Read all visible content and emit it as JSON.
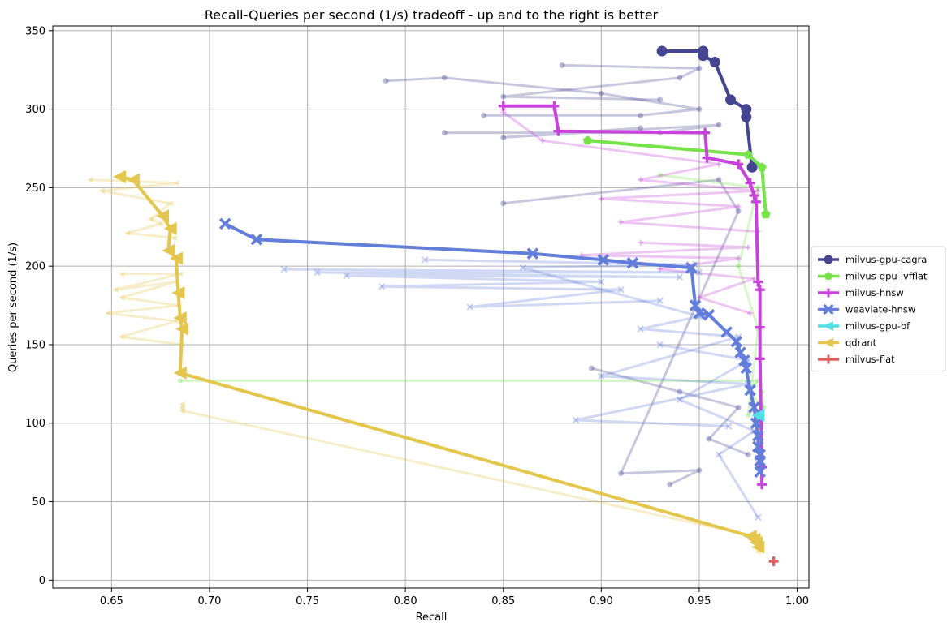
{
  "chart_data": {
    "type": "line",
    "title": "Recall-Queries per second (1/s) tradeoff - up and to the right is better",
    "xlabel": "Recall",
    "ylabel": "Queries per second (1/s)",
    "xlim": [
      0.62,
      1.006
    ],
    "ylim": [
      -5,
      353
    ],
    "xticks": [
      "0.65",
      "0.70",
      "0.75",
      "0.80",
      "0.85",
      "0.90",
      "0.95",
      "1.00"
    ],
    "xtick_values": [
      0.65,
      0.7,
      0.75,
      0.8,
      0.85,
      0.9,
      0.95,
      1.0
    ],
    "yticks": [
      "0",
      "50",
      "100",
      "150",
      "200",
      "250",
      "300",
      "350"
    ],
    "ytick_values": [
      0,
      50,
      100,
      150,
      200,
      250,
      300,
      350
    ],
    "grid": true,
    "legend_position": "right",
    "series": [
      {
        "name": "milvus-gpu-cagra",
        "color": "#454592",
        "marker": "circle",
        "x": [
          0.931,
          0.952,
          0.952,
          0.958,
          0.966,
          0.974,
          0.974,
          0.977
        ],
        "y": [
          337,
          337,
          334,
          330,
          306,
          300,
          295,
          263
        ],
        "faint": [
          {
            "x": [
              0.88,
              0.95,
              0.94,
              0.85,
              0.93
            ],
            "y": [
              328,
              326,
              320,
              308,
              306
            ]
          },
          {
            "x": [
              0.79,
              0.82,
              0.9,
              0.95,
              0.92,
              0.84
            ],
            "y": [
              318,
              320,
              310,
              300,
              296,
              296
            ]
          },
          {
            "x": [
              0.82,
              0.93,
              0.96,
              0.85,
              0.92
            ],
            "y": [
              285,
              285,
              290,
              282,
              288
            ]
          },
          {
            "x": [
              0.85,
              0.96,
              0.97,
              0.91,
              0.95,
              0.935
            ],
            "y": [
              240,
              255,
              235,
              68,
              70,
              61
            ]
          },
          {
            "x": [
              0.895,
              0.94,
              0.97,
              0.955,
              0.975
            ],
            "y": [
              135,
              120,
              110,
              90,
              80
            ]
          }
        ]
      },
      {
        "name": "milvus-gpu-ivfflat",
        "color": "#77e34a",
        "marker": "pentagon",
        "x": [
          0.893,
          0.975,
          0.982,
          0.984
        ],
        "y": [
          280,
          271,
          263,
          233
        ],
        "faint": [
          {
            "x": [
              0.685,
              0.98,
              0.978,
              0.975,
              0.983,
              0.982
            ],
            "y": [
              127,
              127,
              124,
              120,
              110,
              120
            ]
          },
          {
            "x": [
              0.93,
              0.98,
              0.97,
              0.98,
              0.975
            ],
            "y": [
              258,
              250,
              200,
              160,
              105
            ]
          }
        ]
      },
      {
        "name": "milvus-hnsw",
        "color": "#c743dc",
        "marker": "plus",
        "x": [
          0.85,
          0.876,
          0.878,
          0.953,
          0.954,
          0.97,
          0.976,
          0.978,
          0.979,
          0.98,
          0.981,
          0.981,
          0.981,
          0.982,
          0.982
        ],
        "y": [
          302,
          302,
          286,
          285,
          269,
          265,
          253,
          245,
          241,
          190,
          185,
          161,
          141,
          72,
          61
        ],
        "faint": [
          {
            "x": [
              0.85,
              0.87,
              0.96,
              0.92,
              0.98,
              0.9,
              0.97,
              0.91,
              0.98
            ],
            "y": [
              298,
              280,
              265,
              255,
              248,
              243,
              238,
              228,
              222
            ]
          },
          {
            "x": [
              0.92,
              0.975,
              0.89,
              0.97,
              0.93,
              0.978,
              0.95,
              0.976
            ],
            "y": [
              215,
              212,
              207,
              205,
              198,
              192,
              180,
              170
            ]
          }
        ]
      },
      {
        "name": "weaviate-hnsw",
        "color": "#637ddb",
        "marker": "x",
        "x": [
          0.708,
          0.724,
          0.865,
          0.901,
          0.916,
          0.946,
          0.948,
          0.95,
          0.955,
          0.964,
          0.969,
          0.971,
          0.973,
          0.974,
          0.976,
          0.978,
          0.979,
          0.98,
          0.98,
          0.981,
          0.981,
          0.981
        ],
        "y": [
          227,
          217,
          208,
          204,
          202,
          199,
          175,
          170,
          169,
          158,
          152,
          145,
          140,
          135,
          121,
          110,
          100,
          92,
          85,
          80,
          76,
          69
        ],
        "faint": [
          {
            "x": [
              0.738,
              0.95,
              0.755,
              0.94,
              0.77,
              0.9,
              0.788,
              0.91,
              0.833,
              0.93
            ],
            "y": [
              198,
              196,
              196,
              193,
              194,
              190,
              187,
              185,
              174,
              178
            ]
          },
          {
            "x": [
              0.81,
              0.948,
              0.86,
              0.95,
              0.92,
              0.97,
              0.9,
              0.975,
              0.887,
              0.965
            ],
            "y": [
              204,
              201,
              199,
              168,
              160,
              155,
              130,
              125,
              102,
              98
            ]
          },
          {
            "x": [
              0.93,
              0.975,
              0.94,
              0.978,
              0.96,
              0.98
            ],
            "y": [
              150,
              140,
              115,
              95,
              80,
              40
            ]
          }
        ]
      },
      {
        "name": "milvus-gpu-bf",
        "color": "#50dfe4",
        "marker": "triangle-left",
        "x": [
          0.98
        ],
        "y": [
          105
        ],
        "faint": []
      },
      {
        "name": "qdrant",
        "color": "#e3c64b",
        "marker": "triangle-left",
        "x": [
          0.654,
          0.661,
          0.676,
          0.68,
          0.679,
          0.683,
          0.684,
          0.685,
          0.686,
          0.685,
          0.976,
          0.978,
          0.979,
          0.98
        ],
        "y": [
          257,
          255,
          232,
          224,
          210,
          205,
          183,
          167,
          160,
          132,
          28,
          26,
          24,
          21
        ],
        "faint": [
          {
            "x": [
              0.639,
              0.683,
              0.645,
              0.68,
              0.67,
              0.675,
              0.658,
              0.682
            ],
            "y": [
              255,
              253,
              248,
              240,
              230,
              227,
              221,
              218
            ]
          },
          {
            "x": [
              0.655,
              0.685,
              0.652,
              0.683,
              0.655,
              0.684,
              0.648,
              0.683,
              0.655,
              0.686
            ],
            "y": [
              195,
              195,
              185,
              190,
              180,
              175,
              170,
              165,
              155,
              150
            ]
          },
          {
            "x": [
              0.686,
              0.686,
              0.686,
              0.978,
              0.98
            ],
            "y": [
              112,
              110,
              108,
              28,
              18
            ]
          }
        ]
      },
      {
        "name": "milvus-flat",
        "color": "#e05e5e",
        "marker": "plus",
        "x": [
          0.988
        ],
        "y": [
          12
        ],
        "faint": []
      }
    ]
  }
}
